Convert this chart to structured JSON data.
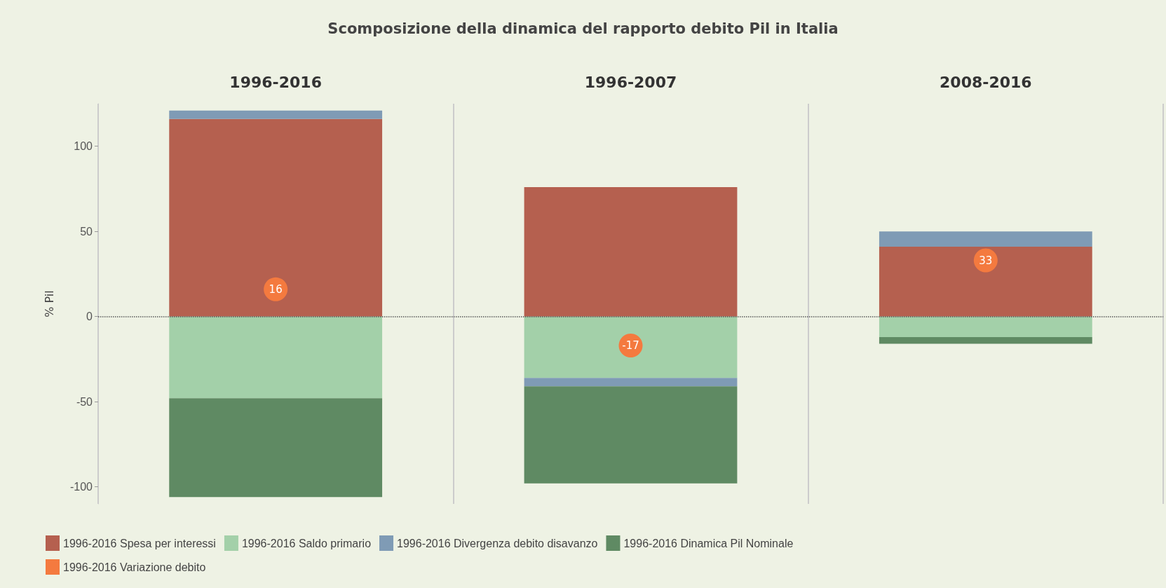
{
  "chart_data": {
    "type": "bar",
    "title": "Scomposizione della dinamica del rapporto debito Pil in Italia",
    "ylabel": "% Pil",
    "categories": [
      "1996-2016",
      "1996-2007",
      "2008-2016"
    ],
    "stacked": true,
    "series": [
      {
        "name": "1996-2016 Spesa per interessi",
        "color": "#b5604f",
        "values": [
          116,
          76,
          41
        ]
      },
      {
        "name": "1996-2016 Saldo primario",
        "color": "#a3d0a9",
        "values": [
          -48,
          -36,
          -12
        ]
      },
      {
        "name": "1996-2016 Divergenza debito disavanzo",
        "color": "#7f9bb5",
        "values": [
          5,
          -5,
          9
        ]
      },
      {
        "name": "1996-2016 Dinamica Pil Nominale",
        "color": "#5f8a63",
        "values": [
          -58,
          -57,
          -4
        ]
      },
      {
        "name": "1996-2016 Variazione debito",
        "type": "scatter",
        "color": "#f47a3f",
        "x": [
          "1996-2016",
          "1996-2007",
          "2008-2016"
        ],
        "values": [
          16,
          -17,
          33
        ],
        "value_labels": [
          "16",
          "-17",
          "33"
        ]
      }
    ],
    "ylim": [
      -110,
      125
    ],
    "yticks": [
      -100,
      -50,
      0,
      50,
      100
    ],
    "ref_lines": [
      {
        "axis": "y",
        "value": 0,
        "label": null,
        "color": "#555555",
        "line_style": "dotted"
      }
    ],
    "marker": "circle",
    "legend": "bottom"
  }
}
